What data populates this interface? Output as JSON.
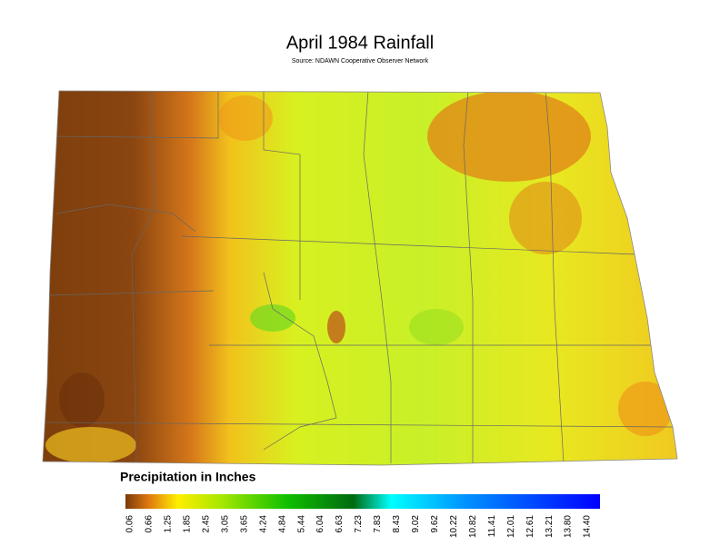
{
  "header": {
    "title": "April 1984 Rainfall",
    "subtitle": "Source: NDAWN Cooperative Observer Network"
  },
  "legend": {
    "title": "Precipitation in Inches",
    "labels": [
      "0.06",
      "0.66",
      "1.25",
      "1.85",
      "2.45",
      "3.05",
      "3.65",
      "4.24",
      "4.84",
      "5.44",
      "6.04",
      "6.63",
      "7.23",
      "7.83",
      "8.43",
      "9.02",
      "9.62",
      "10.22",
      "10.82",
      "11.41",
      "12.01",
      "12.61",
      "13.21",
      "13.80",
      "14.40"
    ]
  }
}
